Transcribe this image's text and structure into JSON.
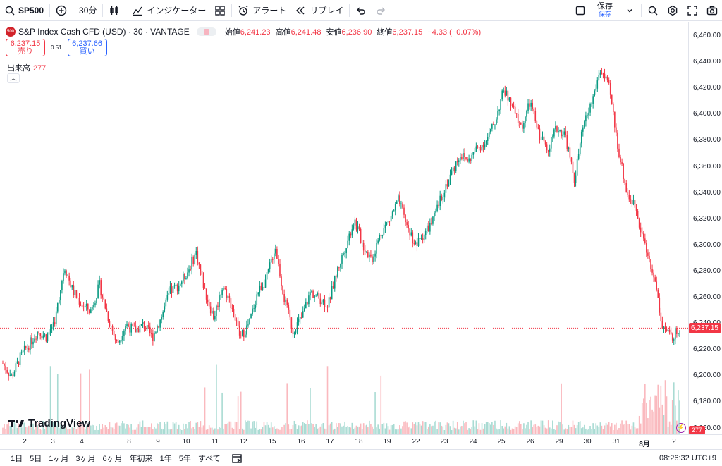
{
  "toolbar": {
    "symbol": "SP500",
    "interval": "30分",
    "indicators": "インジケーター",
    "alert": "アラート",
    "replay": "リプレイ",
    "save": "保存",
    "save_sub": "保存"
  },
  "legend": {
    "logo": "500",
    "title": "S&P Index Cash CFD (USD) · 30 · VANTAGE",
    "open_label": "始値",
    "open": "6,241.23",
    "high_label": "高値",
    "high": "6,241.48",
    "low_label": "安値",
    "low": "6,236.90",
    "close_label": "終値",
    "close": "6,237.15",
    "change": "−4.33 (−0.07%)"
  },
  "trade": {
    "sell_price": "6,237.15",
    "sell_label": "売り",
    "spread": "0.51",
    "buy_price": "6,237.66",
    "buy_label": "買い"
  },
  "volume": {
    "label": "出来高",
    "value": "277"
  },
  "brand": "TradingView",
  "price_axis": [
    "6,460.00",
    "6,440.00",
    "6,420.00",
    "6,400.00",
    "6,380.00",
    "6,360.00",
    "6,340.00",
    "6,320.00",
    "6,300.00",
    "6,280.00",
    "6,260.00",
    "6,240.00",
    "6,220.00",
    "6,200.00",
    "6,180.00",
    "6,160.00"
  ],
  "current_price": "6,237.15",
  "volume_tag": "277",
  "time_axis": [
    "2",
    "3",
    "4",
    "8",
    "9",
    "10",
    "11",
    "12",
    "15",
    "16",
    "17",
    "18",
    "19",
    "22",
    "23",
    "24",
    "25",
    "26",
    "29",
    "30",
    "31",
    "8月",
    "2"
  ],
  "ranges": [
    "1日",
    "5日",
    "1ヶ月",
    "3ヶ月",
    "6ヶ月",
    "年初来",
    "1年",
    "5年",
    "すべて"
  ],
  "clock": "08:26:32 UTC+9",
  "colors": {
    "up": "#089981",
    "down": "#f23645",
    "accent": "#2962ff"
  },
  "chart_data": {
    "type": "candlestick",
    "ylim": [
      6160,
      6460
    ],
    "x": [
      "2",
      "3",
      "4",
      "8",
      "9",
      "10",
      "11",
      "12",
      "15",
      "16",
      "17",
      "18",
      "19",
      "22",
      "23",
      "24",
      "25",
      "26",
      "29",
      "30",
      "31",
      "8月",
      "2"
    ],
    "close_path": [
      6210,
      6200,
      6215,
      6225,
      6235,
      6230,
      6245,
      6285,
      6265,
      6255,
      6250,
      6270,
      6245,
      6225,
      6240,
      6235,
      6240,
      6230,
      6245,
      6265,
      6270,
      6280,
      6295,
      6265,
      6245,
      6270,
      6255,
      6230,
      6240,
      6265,
      6275,
      6300,
      6260,
      6235,
      6245,
      6265,
      6260,
      6255,
      6280,
      6300,
      6320,
      6300,
      6290,
      6310,
      6320,
      6335,
      6315,
      6300,
      6310,
      6320,
      6340,
      6355,
      6370,
      6365,
      6375,
      6380,
      6395,
      6420,
      6405,
      6390,
      6410,
      6385,
      6375,
      6390,
      6385,
      6350,
      6390,
      6410,
      6435,
      6420,
      6375,
      6340,
      6330,
      6300,
      6280,
      6240,
      6230,
      6237
    ]
  }
}
